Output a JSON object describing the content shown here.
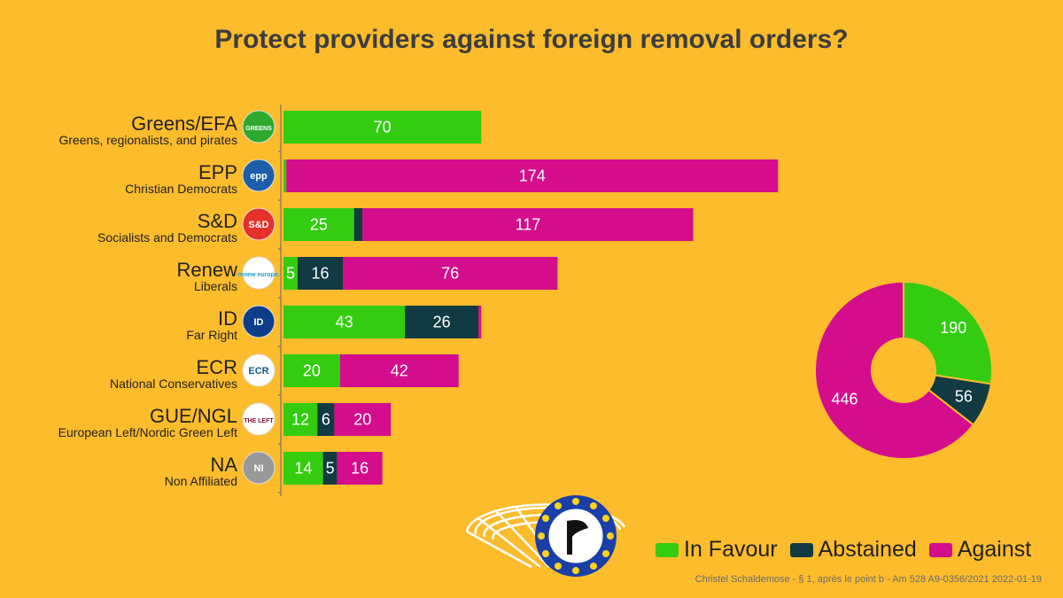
{
  "title": "Protect providers against foreign removal orders?",
  "footer": "Christel Schaldemose - § 1, après le point b - Am 528 A9-0356/2021 2022-01-19",
  "colors": {
    "favour": "#33CC11",
    "abstained": "#123A43",
    "against": "#D40D8C",
    "background": "#FDBC2C"
  },
  "legend": [
    {
      "label": "In Favour",
      "key": "favour"
    },
    {
      "label": "Abstained",
      "key": "abstained"
    },
    {
      "label": "Against",
      "key": "against"
    }
  ],
  "chart_data": [
    {
      "type": "bar",
      "orientation": "horizontal",
      "stacked": true,
      "categories": [
        "Greens/EFA",
        "EPP",
        "S&D",
        "Renew",
        "ID",
        "ECR",
        "GUE/NGL",
        "NA"
      ],
      "category_descriptions": [
        "Greens, regionalists, and pirates",
        "Christian Democrats",
        "Socialists and Democrats",
        "Liberals",
        "Far Right",
        "National Conservatives",
        "European Left/Nordic Green Left",
        "Non Affiliated"
      ],
      "logos": [
        "GREENS",
        "epp",
        "S&D",
        "renew europe.",
        "ID",
        "ECR",
        "THE LEFT",
        "NI"
      ],
      "series": [
        {
          "name": "In Favour",
          "values": [
            70,
            1,
            25,
            5,
            43,
            20,
            12,
            14
          ]
        },
        {
          "name": "Abstained",
          "values": [
            0,
            0,
            3,
            16,
            26,
            0,
            6,
            5
          ]
        },
        {
          "name": "Against",
          "values": [
            0,
            174,
            117,
            76,
            1,
            42,
            20,
            16
          ]
        }
      ],
      "legend_position": "bottom-right",
      "grid": false
    },
    {
      "type": "pie",
      "donut": true,
      "labels": [
        "In Favour",
        "Abstained",
        "Against"
      ],
      "values": [
        190,
        56,
        446
      ]
    }
  ]
}
